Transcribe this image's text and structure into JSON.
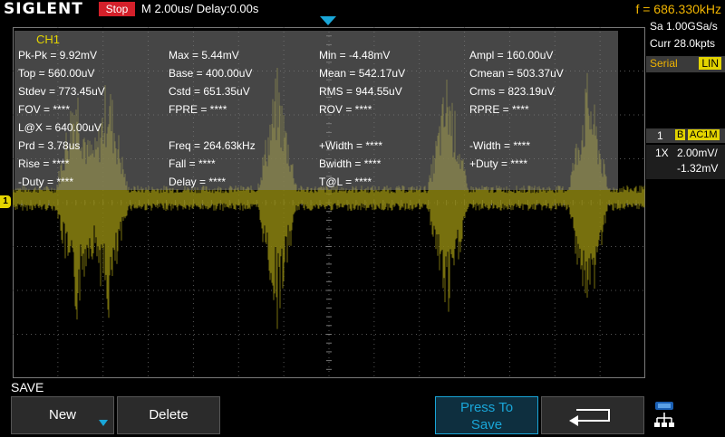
{
  "header": {
    "brand": "SIGLENT",
    "run_state": "Stop",
    "timebase": "M 2.00us/",
    "delay": "Delay:0.00s",
    "trigger_freq": "f = 686.330kHz"
  },
  "acquisition": {
    "sample_rate": "Sa 1.00GSa/s",
    "memory": "Curr 28.0kpts"
  },
  "decode": {
    "label": "Serial",
    "mode": "LIN"
  },
  "channel": {
    "number": "1",
    "bw_flag": "B",
    "coupling": "AC1M",
    "probe": "1X",
    "vdiv": "2.00mV/",
    "offset": "-1.32mV",
    "marker": "1"
  },
  "measurements": {
    "title": "CH1",
    "rows": [
      [
        "Pk-Pk = 9.92mV",
        "Max = 5.44mV",
        "Min = -4.48mV",
        "Ampl = 160.00uV"
      ],
      [
        "Top = 560.00uV",
        "Base = 400.00uV",
        "Mean = 542.17uV",
        "Cmean = 503.37uV"
      ],
      [
        "Stdev = 773.45uV",
        "Cstd = 651.35uV",
        "RMS = 944.55uV",
        "Crms = 823.19uV"
      ],
      [
        "FOV = ****",
        "FPRE = ****",
        "ROV = ****",
        "RPRE = ****"
      ],
      [
        "L@X = 640.00uV",
        "",
        "",
        ""
      ],
      [
        "Prd = 3.78us",
        "Freq = 264.63kHz",
        "+Width = ****",
        "-Width = ****"
      ],
      [
        "Rise = ****",
        "Fall = ****",
        "Bwidth = ****",
        "+Duty = ****"
      ],
      [
        "-Duty = ****",
        "Delay = ****",
        "T@L = ****",
        ""
      ]
    ]
  },
  "menu": {
    "title": "SAVE",
    "new_label": "New",
    "delete_label": "Delete",
    "press_to_save_line1": "Press To",
    "press_to_save_line2": "Save",
    "back_icon": "return-arrow-icon",
    "network_icon": "network-icon"
  },
  "colors": {
    "channel1": "#e3d400",
    "accent": "#19a6d8",
    "stop": "#d4202a",
    "freq": "#f0b400"
  }
}
